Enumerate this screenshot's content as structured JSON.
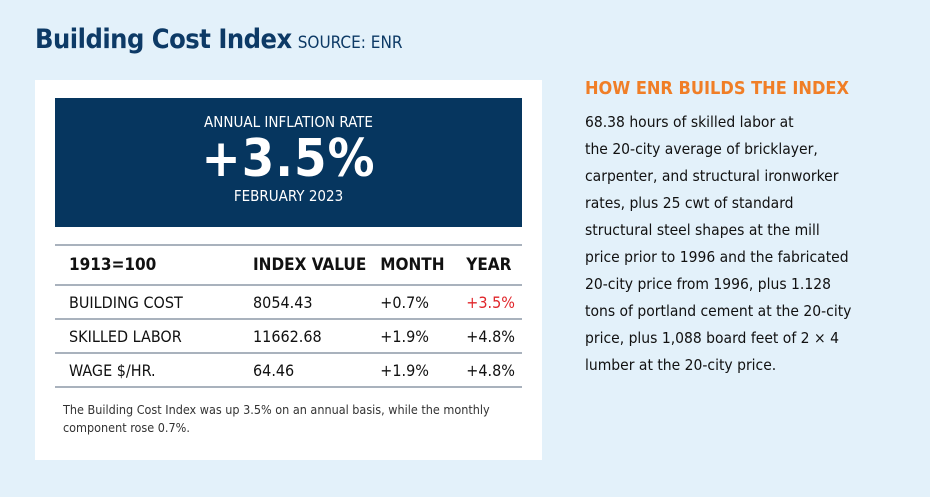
{
  "header": {
    "title": "Building Cost Index",
    "source": "SOURCE: ENR"
  },
  "hero": {
    "label": "ANNUAL INFLATION RATE",
    "value": "+3.5%",
    "date": "FEBRUARY 2023"
  },
  "table": {
    "headers": [
      "1913=100",
      "INDEX VALUE",
      "MONTH",
      "YEAR"
    ],
    "rows": [
      [
        "BUILDING COST",
        "8054.43",
        "+0.7%",
        "+3.5%"
      ],
      [
        "SKILLED LABOR",
        "11662.68",
        "+1.9%",
        "+4.8%"
      ],
      [
        "WAGE $/HR.",
        "64.46",
        "+1.9%",
        "+4.8%"
      ]
    ]
  },
  "note": "The Building Cost Index was up 3.5% on an annual basis, while the monthly component rose 0.7%.",
  "side": {
    "heading": "HOW ENR BUILDS THE INDEX",
    "lines": [
      "68.38 hours of skilled labor at",
      "the 20-city average of bricklayer,",
      "carpenter, and structural ironworker",
      "rates, plus 25 cwt of standard",
      "structural steel shapes at the mill",
      "price prior to 1996 and the fabricated",
      "20-city price from 1996, plus 1.128",
      "tons of portland cement at the 20-city",
      "price, plus 1,088 board feet of 2 × 4",
      "lumber at the 20-city price."
    ]
  },
  "colors": {
    "navy": "#06365f",
    "orange": "#f07e26",
    "red": "#e0262b",
    "background": "#e3f1fa"
  }
}
